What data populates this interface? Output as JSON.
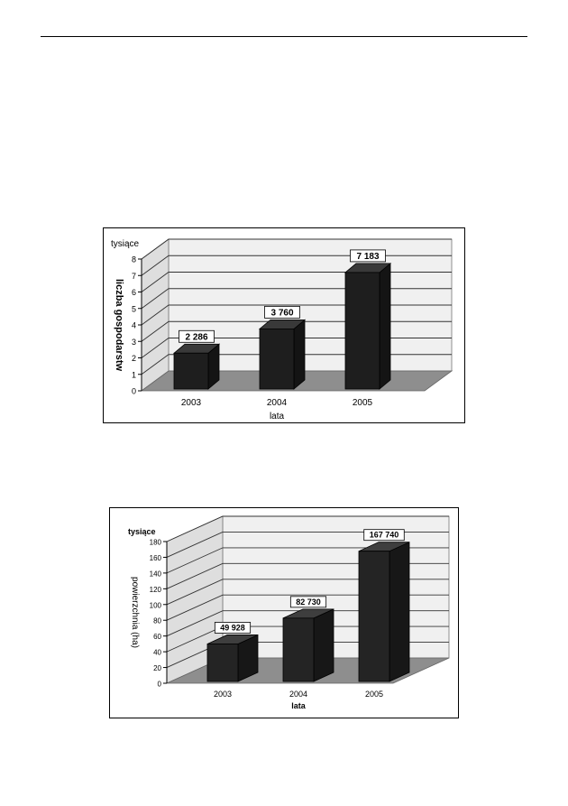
{
  "chart_data": [
    {
      "type": "bar",
      "unit_label": "tysiące",
      "ylabel": "liczba gospodarstw",
      "xlabel": "lata",
      "categories": [
        "2003",
        "2004",
        "2005"
      ],
      "values": [
        2.286,
        3.76,
        7.183
      ],
      "value_labels": [
        "2 286",
        "3 760",
        "7 183"
      ],
      "ylim": [
        0,
        8
      ],
      "yticks": [
        "0",
        "1",
        "2",
        "3",
        "4",
        "5",
        "6",
        "7",
        "8"
      ],
      "grid": true,
      "style_3d": true,
      "bar_color": "#1e1e1e"
    },
    {
      "type": "bar",
      "unit_label": "tysiące",
      "ylabel": "powierzchnia (ha)",
      "xlabel": "lata",
      "categories": [
        "2003",
        "2004",
        "2005"
      ],
      "values": [
        49.928,
        82.73,
        167.74
      ],
      "value_labels": [
        "49 928",
        "82 730",
        "167 740"
      ],
      "ylim": [
        0,
        180
      ],
      "yticks": [
        "0",
        "20",
        "40",
        "60",
        "80",
        "100",
        "120",
        "140",
        "160",
        "180"
      ],
      "grid": true,
      "style_3d": true,
      "bar_color": "#242424"
    }
  ]
}
